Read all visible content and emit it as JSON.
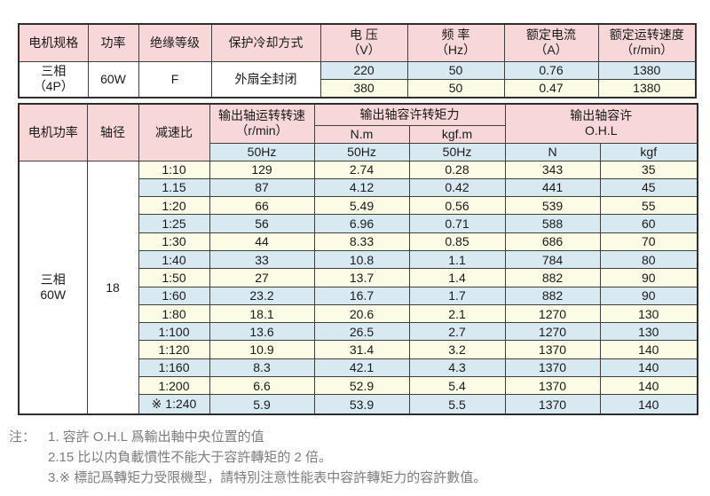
{
  "colors": {
    "header_pink": "#f8d7d9",
    "row_blue": "#d9e9f2",
    "row_yellow": "#fbfbe6",
    "border": "#3f3f3f",
    "note_text": "#7d7d7d"
  },
  "spec_table": {
    "headers": {
      "motor_spec": "电机规格",
      "power": "功率",
      "insulation": "绝缘等级",
      "cooling": "保护冷却方式",
      "voltage": "电 压\n（V）",
      "frequency": "频 率\n（Hz）",
      "current": "额定电流\n（A）",
      "speed": "额定运转速度\n（r/min）"
    },
    "motor_spec": "三相\n（4P）",
    "power": "60W",
    "insulation": "F",
    "cooling": "外扇全封闭",
    "rows": [
      {
        "voltage": "220",
        "frequency": "50",
        "current": "0.76",
        "speed": "1380"
      },
      {
        "voltage": "380",
        "frequency": "50",
        "current": "0.47",
        "speed": "1380"
      }
    ]
  },
  "performance_table": {
    "headers": {
      "motor_power": "电机功率",
      "shaft_diameter": "轴径",
      "ratio": "减速比",
      "output_speed": "输出轴运转转速\n（r/min）",
      "torque": "输出轴容许转矩力",
      "torque_nm": "N.m",
      "torque_kgfm": "kgf.m",
      "ohl": "输出轴容许\nO.H.L",
      "sub_speed_hz": "50Hz",
      "sub_nm_hz": "50Hz",
      "sub_kgfm_hz": "50Hz",
      "sub_ohl_n": "N",
      "sub_ohl_kgf": "kgf"
    },
    "motor_power": "三相\n60W",
    "shaft_diameter": "18",
    "rows": [
      [
        "1:10",
        "129",
        "2.74",
        "0.28",
        "343",
        "35"
      ],
      [
        "1.15",
        "87",
        "4.12",
        "0.42",
        "441",
        "45"
      ],
      [
        "1:20",
        "66",
        "5.49",
        "0.56",
        "539",
        "55"
      ],
      [
        "1:25",
        "56",
        "6.96",
        "0.71",
        "588",
        "60"
      ],
      [
        "1:30",
        "44",
        "8.33",
        "0.85",
        "686",
        "70"
      ],
      [
        "1:40",
        "33",
        "10.8",
        "1.1",
        "784",
        "80"
      ],
      [
        "1:50",
        "27",
        "13.7",
        "1.4",
        "882",
        "90"
      ],
      [
        "1:60",
        "23.2",
        "16.7",
        "1.7",
        "882",
        "90"
      ],
      [
        "1:80",
        "18.1",
        "20.6",
        "2.1",
        "1270",
        "130"
      ],
      [
        "1:100",
        "13.6",
        "26.5",
        "2.7",
        "1270",
        "130"
      ],
      [
        "1:120",
        "10.9",
        "31.4",
        "3.2",
        "1370",
        "140"
      ],
      [
        "1:160",
        "8.3",
        "42.1",
        "4.3",
        "1370",
        "140"
      ],
      [
        "1:200",
        "6.6",
        "52.9",
        "5.4",
        "1370",
        "140"
      ],
      [
        "※ 1:240",
        "5.9",
        "53.9",
        "5.5",
        "1370",
        "140"
      ]
    ]
  },
  "notes": {
    "label": "注：",
    "items": [
      "1. 容許 O.H.L 爲輸出軸中央位置的值",
      "2.15 比以内負載慣性不能大于容許轉矩的 2 倍。",
      "3.※ 標記爲轉矩力受限機型，請特別注意性能表中容許轉矩力的容許數值。"
    ]
  }
}
